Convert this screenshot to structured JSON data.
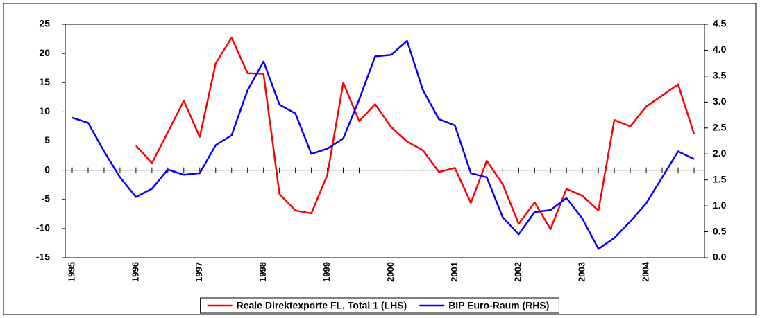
{
  "chart_data": {
    "type": "line",
    "categories": [
      "1995",
      null,
      null,
      null,
      "1996",
      null,
      null,
      null,
      "1997",
      null,
      null,
      null,
      "1998",
      null,
      null,
      null,
      "1999",
      null,
      null,
      null,
      "2000",
      null,
      null,
      null,
      "2001",
      null,
      null,
      null,
      "2002",
      null,
      null,
      null,
      "2003",
      null,
      null,
      null,
      "2004",
      null,
      null,
      null
    ],
    "series": [
      {
        "name": "Reale Direktexporte FL, Total 1 (LHS)",
        "color": "#ff0000",
        "values": [
          null,
          null,
          null,
          null,
          4.2,
          1.2,
          6.5,
          11.9,
          5.7,
          18.3,
          22.7,
          16.6,
          16.5,
          -4.1,
          -6.9,
          -7.4,
          -0.8,
          15.0,
          8.4,
          11.3,
          7.4,
          4.9,
          3.4,
          -0.3,
          0.4,
          -5.6,
          1.6,
          -2.4,
          -9.2,
          -5.5,
          -10.1,
          -3.2,
          -4.4,
          -6.9,
          8.6,
          7.5,
          10.9,
          12.8,
          14.7,
          6.2
        ]
      },
      {
        "name": "BIP Euro-Raum (RHS)",
        "color": "#0000ff",
        "axis": "y2",
        "values": [
          2.7,
          2.6,
          2.05,
          1.55,
          1.17,
          1.33,
          1.7,
          1.6,
          1.63,
          2.17,
          2.36,
          3.23,
          3.78,
          2.95,
          2.78,
          2.0,
          2.1,
          2.3,
          3.05,
          3.88,
          3.91,
          4.18,
          3.23,
          2.67,
          2.55,
          1.63,
          1.55,
          0.78,
          0.45,
          0.88,
          0.92,
          1.15,
          0.75,
          0.17,
          0.38,
          0.7,
          1.05,
          1.55,
          2.05,
          1.9
        ]
      }
    ],
    "ylim": [
      -15,
      25
    ],
    "yticks": [
      -15,
      -10,
      -5,
      0,
      5,
      10,
      15,
      20,
      25
    ],
    "y2lim": [
      0,
      4.5
    ],
    "y2ticks": [
      {
        "value": 0,
        "label": "0.0"
      },
      0.5,
      {
        "value": 1,
        "label": "1.0"
      },
      1.5,
      {
        "value": 2,
        "label": "2.0"
      },
      2.5,
      {
        "value": 3,
        "label": "3.0"
      },
      3.5,
      {
        "value": 4,
        "label": "4.0"
      },
      4.5
    ],
    "grid": false,
    "legend": "bottom"
  }
}
